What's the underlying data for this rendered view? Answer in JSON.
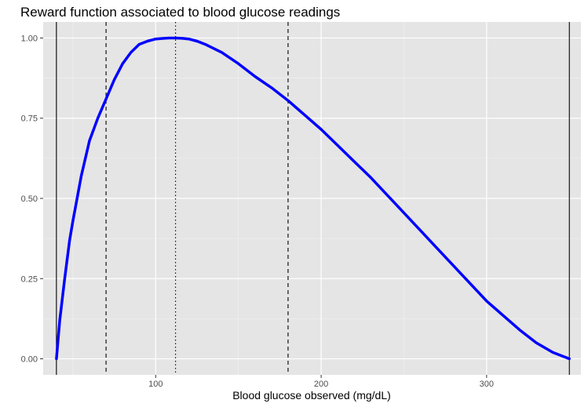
{
  "chart_data": {
    "type": "line",
    "title": "Reward function associated to blood glucose readings",
    "xlabel": "Blood glucose observed (mg/dL)",
    "ylabel": "",
    "xlim": [
      32,
      357
    ],
    "ylim": [
      -0.05,
      1.05
    ],
    "x_ticks": [
      100,
      200,
      300
    ],
    "x_tick_labels": [
      "100",
      "200",
      "300"
    ],
    "y_ticks": [
      0,
      0.25,
      0.5,
      0.75,
      1.0
    ],
    "y_tick_labels": [
      "0.00",
      "0.25",
      "0.50",
      "0.75",
      "1.00"
    ],
    "grid": true,
    "background": "#e5e5e5",
    "series": [
      {
        "color": "#0000ff",
        "x": [
          40,
          42,
          45,
          48,
          50,
          55,
          60,
          65,
          70,
          75,
          80,
          85,
          90,
          95,
          100,
          105,
          108,
          112,
          116,
          120,
          125,
          130,
          140,
          150,
          160,
          170,
          180,
          190,
          200,
          210,
          220,
          230,
          240,
          250,
          260,
          270,
          280,
          290,
          300,
          310,
          320,
          330,
          340,
          350
        ],
        "y": [
          0,
          0.12,
          0.25,
          0.37,
          0.43,
          0.57,
          0.68,
          0.75,
          0.81,
          0.87,
          0.92,
          0.955,
          0.98,
          0.99,
          0.997,
          0.999,
          1.0,
          1.0,
          0.999,
          0.997,
          0.99,
          0.98,
          0.955,
          0.92,
          0.88,
          0.845,
          0.805,
          0.76,
          0.715,
          0.665,
          0.615,
          0.565,
          0.51,
          0.455,
          0.4,
          0.345,
          0.29,
          0.235,
          0.18,
          0.135,
          0.09,
          0.05,
          0.02,
          0
        ]
      }
    ],
    "vlines": [
      {
        "x": 40,
        "style": "solid"
      },
      {
        "x": 70,
        "style": "dashed"
      },
      {
        "x": 112,
        "style": "dotted"
      },
      {
        "x": 180,
        "style": "dashed"
      },
      {
        "x": 350,
        "style": "solid"
      }
    ]
  }
}
